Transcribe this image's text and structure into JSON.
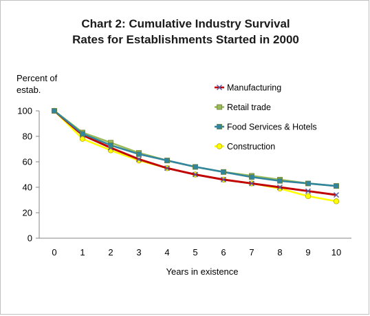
{
  "chart_data": {
    "type": "line",
    "title": [
      "Chart 2: Cumulative Industry Survival",
      "Rates for Establishments Started in 2000"
    ],
    "ylabel": [
      "Percent of",
      "estab."
    ],
    "xlabel": "Years in existence",
    "x": [
      0,
      1,
      2,
      3,
      4,
      5,
      6,
      7,
      8,
      9,
      10
    ],
    "xlim": [
      0,
      10
    ],
    "ylim": [
      0,
      100
    ],
    "yticks": [
      0,
      20,
      40,
      60,
      80,
      100
    ],
    "grid": false,
    "legend_position": "top-right",
    "series": [
      {
        "name": "Manufacturing",
        "color": "#c00000",
        "marker": "x",
        "values": [
          100,
          81,
          71,
          62,
          55,
          50,
          46,
          43,
          40,
          37,
          34
        ]
      },
      {
        "name": "Retail trade",
        "color": "#9bbb59",
        "marker": "square",
        "values": [
          100,
          83,
          75,
          67,
          61,
          56,
          52,
          49,
          46,
          43,
          41
        ]
      },
      {
        "name": "Food Services & Hotels",
        "color": "#31859c",
        "marker": "square",
        "values": [
          100,
          82,
          73,
          66,
          61,
          56,
          52,
          48,
          45,
          43,
          41
        ]
      },
      {
        "name": "Construction",
        "color": "#ffff00",
        "marker": "circle",
        "values": [
          100,
          78,
          69,
          61,
          55,
          50,
          46,
          43,
          39,
          33,
          29
        ]
      }
    ]
  }
}
